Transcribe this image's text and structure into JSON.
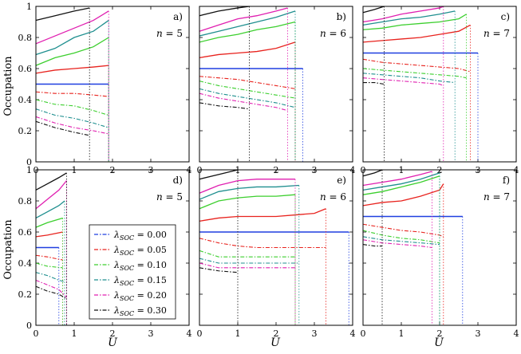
{
  "figure": {
    "ylabel": "Occupation",
    "xlabel": "U"
  },
  "legend": {
    "entries": [
      {
        "label": "λSOC = 0.00",
        "color": "#1f3fe0",
        "dash": "dashdot"
      },
      {
        "label": "λSOC = 0.05",
        "color": "#e8231e",
        "dash": "dashdot"
      },
      {
        "label": "λSOC = 0.10",
        "color": "#3ccf2e",
        "dash": "dashdot"
      },
      {
        "label": "λSOC = 0.15",
        "color": "#1f8f8f",
        "dash": "dashdot"
      },
      {
        "label": "λSOC = 0.20",
        "color": "#e01fb0",
        "dash": "dashdot"
      },
      {
        "label": "λSOC = 0.30",
        "color": "#111111",
        "dash": "dashdot"
      }
    ]
  },
  "chart_data": [
    {
      "type": "line",
      "panel": "a)",
      "annotation": "n = 5",
      "xlim": [
        0,
        4
      ],
      "ylim": [
        0,
        1
      ],
      "xticks": [
        "0",
        "1",
        "2",
        "3",
        "4"
      ],
      "yticks": [
        "0",
        "0.2",
        "0.4",
        "0.6",
        "0.8",
        "1"
      ],
      "series": [
        {
          "lambda": 0.0,
          "x": [
            0,
            1.9
          ],
          "upper": [
            0.5,
            0.5
          ],
          "lower": []
        },
        {
          "lambda": 0.05,
          "x": [
            0,
            0.5,
            1.0,
            1.5,
            1.9
          ],
          "upper": [
            0.57,
            0.59,
            0.6,
            0.61,
            0.62
          ],
          "lower": [
            0.45,
            0.44,
            0.44,
            0.43,
            0.42
          ]
        },
        {
          "lambda": 0.1,
          "x": [
            0,
            0.5,
            1.0,
            1.5,
            1.9
          ],
          "upper": [
            0.62,
            0.67,
            0.7,
            0.74,
            0.8
          ],
          "lower": [
            0.4,
            0.37,
            0.36,
            0.33,
            0.3
          ]
        },
        {
          "lambda": 0.15,
          "x": [
            0,
            0.5,
            1.0,
            1.5,
            1.9
          ],
          "upper": [
            0.69,
            0.73,
            0.8,
            0.84,
            0.91
          ],
          "lower": [
            0.34,
            0.3,
            0.28,
            0.25,
            0.22
          ]
        },
        {
          "lambda": 0.2,
          "x": [
            0,
            0.5,
            1.0,
            1.5,
            1.9
          ],
          "upper": [
            0.76,
            0.81,
            0.86,
            0.91,
            0.97
          ],
          "lower": [
            0.29,
            0.25,
            0.22,
            0.2,
            0.18
          ]
        },
        {
          "lambda": 0.3,
          "x": [
            0,
            0.5,
            1.0,
            1.4
          ],
          "upper": [
            0.91,
            0.94,
            0.97,
            0.99
          ],
          "lower": [
            0.26,
            0.22,
            0.19,
            0.17
          ]
        }
      ]
    },
    {
      "type": "line",
      "panel": "b)",
      "annotation": "n = 6",
      "xlim": [
        0,
        4
      ],
      "ylim": [
        0,
        1
      ],
      "xticks": [
        "0",
        "1",
        "2",
        "3",
        "4"
      ],
      "yticks": [],
      "series": [
        {
          "lambda": 0.0,
          "x": [
            0,
            2.7
          ],
          "upper": [
            0.6,
            0.6
          ],
          "lower": []
        },
        {
          "lambda": 0.05,
          "x": [
            0,
            0.5,
            1.0,
            1.5,
            2.0,
            2.5
          ],
          "upper": [
            0.67,
            0.69,
            0.7,
            0.71,
            0.73,
            0.77
          ],
          "lower": [
            0.55,
            0.54,
            0.53,
            0.51,
            0.49,
            0.47
          ]
        },
        {
          "lambda": 0.1,
          "x": [
            0,
            0.5,
            1.0,
            1.5,
            2.0,
            2.5
          ],
          "upper": [
            0.77,
            0.8,
            0.82,
            0.85,
            0.87,
            0.9
          ],
          "lower": [
            0.52,
            0.49,
            0.47,
            0.45,
            0.43,
            0.41
          ]
        },
        {
          "lambda": 0.15,
          "x": [
            0,
            0.5,
            1.0,
            1.5,
            2.0,
            2.5
          ],
          "upper": [
            0.81,
            0.84,
            0.87,
            0.9,
            0.93,
            0.97
          ],
          "lower": [
            0.47,
            0.44,
            0.42,
            0.4,
            0.38,
            0.35
          ]
        },
        {
          "lambda": 0.2,
          "x": [
            0,
            0.5,
            1.0,
            1.5,
            2.0,
            2.3
          ],
          "upper": [
            0.84,
            0.88,
            0.92,
            0.94,
            0.97,
            0.99
          ],
          "lower": [
            0.44,
            0.41,
            0.39,
            0.37,
            0.35,
            0.33
          ]
        },
        {
          "lambda": 0.3,
          "x": [
            0,
            0.5,
            1.0,
            1.3
          ],
          "upper": [
            0.94,
            0.97,
            0.99,
            1.0
          ],
          "lower": [
            0.38,
            0.36,
            0.35,
            0.34
          ]
        }
      ]
    },
    {
      "type": "line",
      "panel": "c)",
      "annotation": "n = 7",
      "xlim": [
        0,
        4
      ],
      "ylim": [
        0,
        1
      ],
      "xticks": [
        "0",
        "1",
        "2",
        "3",
        "4"
      ],
      "yticks": [],
      "series": [
        {
          "lambda": 0.0,
          "x": [
            0,
            3.0
          ],
          "upper": [
            0.7,
            0.7
          ],
          "lower": []
        },
        {
          "lambda": 0.05,
          "x": [
            0,
            0.5,
            1.0,
            1.5,
            2.0,
            2.5,
            2.8
          ],
          "upper": [
            0.77,
            0.78,
            0.79,
            0.8,
            0.82,
            0.84,
            0.88
          ],
          "lower": [
            0.66,
            0.64,
            0.63,
            0.62,
            0.61,
            0.6,
            0.58
          ]
        },
        {
          "lambda": 0.1,
          "x": [
            0,
            0.5,
            1.0,
            1.5,
            2.0,
            2.5,
            2.7
          ],
          "upper": [
            0.85,
            0.86,
            0.88,
            0.89,
            0.9,
            0.92,
            0.95
          ],
          "lower": [
            0.6,
            0.59,
            0.58,
            0.57,
            0.56,
            0.55,
            0.54
          ]
        },
        {
          "lambda": 0.15,
          "x": [
            0,
            0.5,
            1.0,
            1.5,
            2.0,
            2.4
          ],
          "upper": [
            0.88,
            0.9,
            0.92,
            0.93,
            0.95,
            0.97
          ],
          "lower": [
            0.57,
            0.56,
            0.55,
            0.54,
            0.52,
            0.51
          ]
        },
        {
          "lambda": 0.2,
          "x": [
            0,
            0.5,
            1.0,
            1.5,
            2.0,
            2.1
          ],
          "upper": [
            0.9,
            0.92,
            0.95,
            0.97,
            0.99,
            1.0
          ],
          "lower": [
            0.54,
            0.53,
            0.52,
            0.51,
            0.5,
            0.49
          ]
        },
        {
          "lambda": 0.3,
          "x": [
            0,
            0.3,
            0.55
          ],
          "upper": [
            0.96,
            0.98,
            1.0
          ],
          "lower": [
            0.51,
            0.51,
            0.5
          ]
        }
      ]
    },
    {
      "type": "line",
      "panel": "d)",
      "annotation": "n = 5",
      "xlim": [
        0,
        4
      ],
      "ylim": [
        0,
        1
      ],
      "xticks": [
        "0",
        "1",
        "2",
        "3",
        "4"
      ],
      "yticks": [
        "0",
        "0.2",
        "0.4",
        "0.6",
        "0.8",
        "1"
      ],
      "series": [
        {
          "lambda": 0.0,
          "x": [
            0,
            0.6
          ],
          "upper": [
            0.5,
            0.5
          ],
          "lower": []
        },
        {
          "lambda": 0.05,
          "x": [
            0,
            0.3,
            0.7
          ],
          "upper": [
            0.57,
            0.58,
            0.6
          ],
          "lower": [
            0.45,
            0.44,
            0.42
          ]
        },
        {
          "lambda": 0.1,
          "x": [
            0,
            0.3,
            0.7
          ],
          "upper": [
            0.63,
            0.66,
            0.69
          ],
          "lower": [
            0.4,
            0.38,
            0.37
          ]
        },
        {
          "lambda": 0.15,
          "x": [
            0,
            0.3,
            0.6,
            0.75
          ],
          "upper": [
            0.69,
            0.73,
            0.77,
            0.8
          ],
          "lower": [
            0.34,
            0.32,
            0.29,
            0.28
          ]
        },
        {
          "lambda": 0.2,
          "x": [
            0,
            0.3,
            0.6,
            0.8
          ],
          "upper": [
            0.75,
            0.81,
            0.87,
            0.93
          ],
          "lower": [
            0.29,
            0.26,
            0.23,
            0.18
          ]
        },
        {
          "lambda": 0.3,
          "x": [
            0,
            0.3,
            0.6,
            0.8
          ],
          "upper": [
            0.87,
            0.91,
            0.95,
            0.98
          ],
          "lower": [
            0.25,
            0.22,
            0.2,
            0.17
          ]
        }
      ]
    },
    {
      "type": "line",
      "panel": "e)",
      "annotation": "n = 6",
      "xlim": [
        0,
        4
      ],
      "ylim": [
        0,
        1
      ],
      "xticks": [
        "0",
        "1",
        "2",
        "3",
        "4"
      ],
      "yticks": [],
      "series": [
        {
          "lambda": 0.0,
          "x": [
            0,
            3.9
          ],
          "upper": [
            0.6,
            0.6
          ],
          "lower": []
        },
        {
          "lambda": 0.05,
          "x": [
            0,
            0.5,
            1.0,
            1.5,
            2.0,
            2.5,
            3.0,
            3.3
          ],
          "upper": [
            0.67,
            0.69,
            0.7,
            0.7,
            0.7,
            0.71,
            0.72,
            0.75
          ],
          "lower": [
            0.56,
            0.53,
            0.51,
            0.5,
            0.5,
            0.5,
            0.5,
            0.5
          ]
        },
        {
          "lambda": 0.1,
          "x": [
            0,
            0.5,
            1.0,
            1.5,
            2.0,
            2.5
          ],
          "upper": [
            0.75,
            0.8,
            0.82,
            0.83,
            0.83,
            0.84
          ],
          "lower": [
            0.48,
            0.44,
            0.44,
            0.44,
            0.44,
            0.44
          ]
        },
        {
          "lambda": 0.15,
          "x": [
            0,
            0.5,
            1.0,
            1.5,
            2.0,
            2.6
          ],
          "upper": [
            0.81,
            0.86,
            0.88,
            0.89,
            0.89,
            0.9
          ],
          "lower": [
            0.43,
            0.4,
            0.4,
            0.4,
            0.4,
            0.4
          ]
        },
        {
          "lambda": 0.2,
          "x": [
            0,
            0.5,
            1.0,
            1.5,
            2.0,
            2.5
          ],
          "upper": [
            0.85,
            0.9,
            0.93,
            0.94,
            0.94,
            0.94
          ],
          "lower": [
            0.4,
            0.37,
            0.37,
            0.37,
            0.37,
            0.37
          ]
        },
        {
          "lambda": 0.3,
          "x": [
            0,
            0.5,
            1.0
          ],
          "upper": [
            0.94,
            0.97,
            1.0
          ],
          "lower": [
            0.37,
            0.35,
            0.34
          ]
        }
      ]
    },
    {
      "type": "line",
      "panel": "f)",
      "annotation": "n = 7",
      "xlim": [
        0,
        4
      ],
      "ylim": [
        0,
        1
      ],
      "xticks": [
        "0",
        "1",
        "2",
        "3",
        "4"
      ],
      "yticks": [],
      "series": [
        {
          "lambda": 0.0,
          "x": [
            0,
            2.6
          ],
          "upper": [
            0.7,
            0.7
          ],
          "lower": []
        },
        {
          "lambda": 0.05,
          "x": [
            0,
            0.5,
            1.0,
            1.5,
            2.0,
            2.1
          ],
          "upper": [
            0.77,
            0.79,
            0.8,
            0.83,
            0.87,
            0.91
          ],
          "lower": [
            0.65,
            0.63,
            0.61,
            0.6,
            0.58,
            0.57
          ]
        },
        {
          "lambda": 0.1,
          "x": [
            0,
            0.5,
            1.0,
            1.5,
            2.0
          ],
          "upper": [
            0.84,
            0.86,
            0.89,
            0.92,
            0.96
          ],
          "lower": [
            0.61,
            0.58,
            0.56,
            0.55,
            0.53
          ]
        },
        {
          "lambda": 0.15,
          "x": [
            0,
            0.5,
            1.0,
            1.5,
            2.0
          ],
          "upper": [
            0.87,
            0.89,
            0.91,
            0.94,
            0.98
          ],
          "lower": [
            0.57,
            0.55,
            0.54,
            0.53,
            0.52
          ]
        },
        {
          "lambda": 0.2,
          "x": [
            0,
            0.5,
            1.0,
            1.5,
            1.8
          ],
          "upper": [
            0.9,
            0.92,
            0.94,
            0.97,
            0.99
          ],
          "lower": [
            0.55,
            0.53,
            0.52,
            0.51,
            0.5
          ]
        },
        {
          "lambda": 0.3,
          "x": [
            0,
            0.3,
            0.5
          ],
          "upper": [
            0.96,
            0.98,
            1.0
          ],
          "lower": [
            0.52,
            0.51,
            0.51
          ]
        }
      ]
    }
  ]
}
